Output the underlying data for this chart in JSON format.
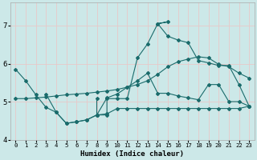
{
  "xlabel": "Humidex (Indice chaleur)",
  "bg_color": "#cce8e8",
  "grid_color": "#e8c8c8",
  "line_color": "#1a6b6b",
  "xlim": [
    -0.5,
    23.5
  ],
  "ylim": [
    4.0,
    7.6
  ],
  "yticks": [
    4,
    5,
    6,
    7
  ],
  "xticks": [
    0,
    1,
    2,
    3,
    4,
    5,
    6,
    7,
    8,
    9,
    10,
    11,
    12,
    13,
    14,
    15,
    16,
    17,
    18,
    19,
    20,
    21,
    22,
    23
  ],
  "series1_x": [
    0,
    1,
    2,
    3,
    4,
    5,
    6,
    7,
    8,
    9,
    10,
    11,
    12,
    13,
    14,
    15,
    16,
    17,
    18,
    19,
    20,
    21,
    22,
    23
  ],
  "series1_y": [
    5.85,
    5.55,
    5.18,
    4.85,
    4.72,
    4.43,
    4.47,
    4.52,
    4.65,
    4.68,
    4.82,
    4.82,
    4.82,
    4.82,
    4.82,
    4.82,
    4.82,
    4.82,
    4.82,
    4.82,
    4.82,
    4.82,
    4.82,
    4.88
  ],
  "series2_x": [
    3,
    4,
    5,
    6,
    7,
    8,
    9,
    10,
    11,
    12,
    13,
    14,
    15,
    16,
    17,
    18,
    19,
    20,
    21,
    22,
    23
  ],
  "series2_y": [
    5.2,
    4.72,
    4.43,
    4.47,
    4.52,
    4.65,
    5.1,
    5.2,
    5.38,
    5.55,
    5.75,
    5.22,
    5.22,
    5.15,
    5.1,
    5.05,
    5.45,
    5.45,
    5.0,
    5.0,
    4.88
  ],
  "series3_x": [
    0,
    1,
    2,
    3,
    4,
    5,
    6,
    7,
    8,
    9,
    10,
    11,
    12,
    13,
    14,
    15,
    16,
    17,
    18,
    19,
    20,
    21,
    22,
    23
  ],
  "series3_y": [
    5.08,
    5.08,
    5.1,
    5.12,
    5.15,
    5.18,
    5.2,
    5.22,
    5.25,
    5.28,
    5.32,
    5.38,
    5.45,
    5.55,
    5.72,
    5.92,
    6.05,
    6.12,
    6.18,
    6.15,
    5.98,
    5.92,
    5.75,
    5.62
  ],
  "series4_x": [
    8,
    8,
    9,
    9,
    10,
    11,
    12,
    13,
    14,
    15,
    14,
    15,
    16,
    17,
    18,
    19,
    20,
    21,
    22,
    23
  ],
  "series4_y": [
    5.08,
    4.65,
    4.65,
    5.08,
    5.08,
    5.08,
    6.15,
    6.52,
    7.05,
    7.1,
    7.05,
    6.72,
    6.62,
    6.55,
    6.08,
    6.02,
    5.95,
    5.95,
    5.45,
    4.88
  ]
}
